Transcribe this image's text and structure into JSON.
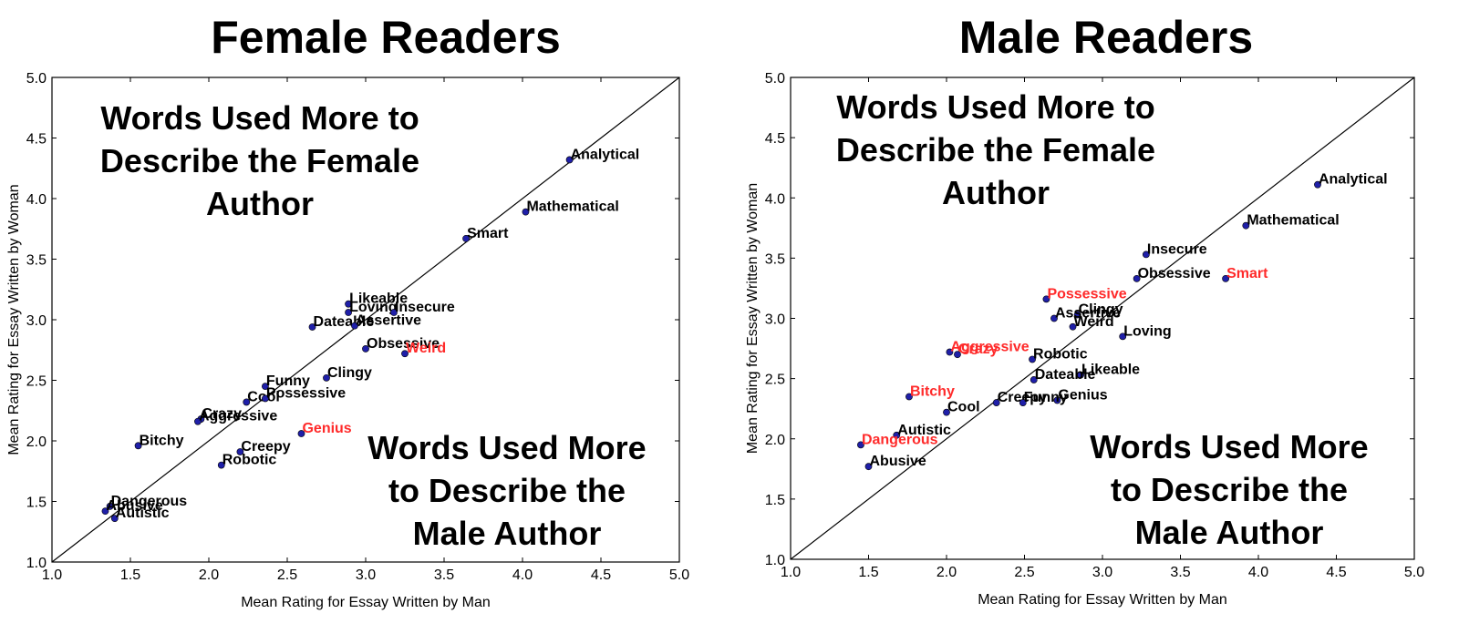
{
  "chart_data": [
    {
      "type": "scatter",
      "title": "Female Readers",
      "xlabel": "Mean Rating for Essay Written by Man",
      "ylabel": "Mean Rating for Essay Written by Woman",
      "xlim": [
        1.0,
        5.0
      ],
      "ylim": [
        1.0,
        5.0
      ],
      "xticks": [
        "1.0",
        "1.5",
        "2.0",
        "2.5",
        "3.0",
        "3.5",
        "4.0",
        "4.5",
        "5.0"
      ],
      "yticks": [
        "1.0",
        "1.5",
        "2.0",
        "2.5",
        "3.0",
        "3.5",
        "4.0",
        "4.5",
        "5.0"
      ],
      "reference_line": "y = x",
      "point_color": "#1f1fa8",
      "label_colors": {
        "normal": "#000000",
        "highlight": "#ff2a2a"
      },
      "annotations": [
        {
          "lines": [
            "Words Used More to",
            "Describe the Female",
            "Author"
          ]
        },
        {
          "lines": [
            "Words Used More",
            "to Describe the",
            "Male Author"
          ]
        }
      ],
      "points": [
        {
          "label": "Analytical",
          "x": 4.3,
          "y": 4.32,
          "highlight": false
        },
        {
          "label": "Mathematical",
          "x": 4.02,
          "y": 3.89,
          "highlight": false
        },
        {
          "label": "Smart",
          "x": 3.64,
          "y": 3.67,
          "highlight": false
        },
        {
          "label": "Likeable",
          "x": 2.89,
          "y": 3.13,
          "highlight": false
        },
        {
          "label": "Loving",
          "x": 2.89,
          "y": 3.06,
          "highlight": false
        },
        {
          "label": "Insecure",
          "x": 3.18,
          "y": 3.06,
          "highlight": false
        },
        {
          "label": "Dateable",
          "x": 2.66,
          "y": 2.94,
          "highlight": false
        },
        {
          "label": "Assertive",
          "x": 2.93,
          "y": 2.95,
          "highlight": false
        },
        {
          "label": "Obsessive",
          "x": 3.0,
          "y": 2.76,
          "highlight": false
        },
        {
          "label": "Weird",
          "x": 3.25,
          "y": 2.72,
          "highlight": true
        },
        {
          "label": "Clingy",
          "x": 2.75,
          "y": 2.52,
          "highlight": false
        },
        {
          "label": "Funny",
          "x": 2.36,
          "y": 2.45,
          "highlight": false
        },
        {
          "label": "Cool",
          "x": 2.24,
          "y": 2.32,
          "highlight": false
        },
        {
          "label": "Possessive",
          "x": 2.36,
          "y": 2.35,
          "highlight": false
        },
        {
          "label": "Crazy",
          "x": 1.95,
          "y": 2.18,
          "highlight": false
        },
        {
          "label": "Aggressive",
          "x": 1.93,
          "y": 2.16,
          "highlight": false
        },
        {
          "label": "Genius",
          "x": 2.59,
          "y": 2.06,
          "highlight": true
        },
        {
          "label": "Bitchy",
          "x": 1.55,
          "y": 1.96,
          "highlight": false
        },
        {
          "label": "Creepy",
          "x": 2.2,
          "y": 1.91,
          "highlight": false
        },
        {
          "label": "Robotic",
          "x": 2.08,
          "y": 1.8,
          "highlight": false
        },
        {
          "label": "Dangerous",
          "x": 1.37,
          "y": 1.46,
          "highlight": false
        },
        {
          "label": "Abusive",
          "x": 1.34,
          "y": 1.42,
          "highlight": false
        },
        {
          "label": "Autistic",
          "x": 1.4,
          "y": 1.36,
          "highlight": false
        }
      ]
    },
    {
      "type": "scatter",
      "title": "Male Readers",
      "xlabel": "Mean Rating for Essay Written by Man",
      "ylabel": "Mean Rating for Essay Written by Woman",
      "xlim": [
        1.0,
        5.0
      ],
      "ylim": [
        1.0,
        5.0
      ],
      "xticks": [
        "1.0",
        "1.5",
        "2.0",
        "2.5",
        "3.0",
        "3.5",
        "4.0",
        "4.5",
        "5.0"
      ],
      "yticks": [
        "1.0",
        "1.5",
        "2.0",
        "2.5",
        "3.0",
        "3.5",
        "4.0",
        "4.5",
        "5.0"
      ],
      "reference_line": "y = x",
      "point_color": "#1f1fa8",
      "label_colors": {
        "normal": "#000000",
        "highlight": "#ff2a2a"
      },
      "annotations": [
        {
          "lines": [
            "Words Used More to",
            "Describe the Female",
            "Author"
          ]
        },
        {
          "lines": [
            "Words Used More",
            "to Describe the",
            "Male Author"
          ]
        }
      ],
      "points": [
        {
          "label": "Analytical",
          "x": 4.38,
          "y": 4.11,
          "highlight": false
        },
        {
          "label": "Mathematical",
          "x": 3.92,
          "y": 3.77,
          "highlight": false
        },
        {
          "label": "Insecure",
          "x": 3.28,
          "y": 3.53,
          "highlight": false
        },
        {
          "label": "Obsessive",
          "x": 3.22,
          "y": 3.33,
          "highlight": false
        },
        {
          "label": "Smart",
          "x": 3.79,
          "y": 3.33,
          "highlight": true
        },
        {
          "label": "Possessive",
          "x": 2.64,
          "y": 3.16,
          "highlight": true
        },
        {
          "label": "Clingy",
          "x": 2.84,
          "y": 3.03,
          "highlight": false
        },
        {
          "label": "Assertive",
          "x": 2.69,
          "y": 3.0,
          "highlight": false
        },
        {
          "label": "Weird",
          "x": 2.81,
          "y": 2.93,
          "highlight": false
        },
        {
          "label": "Loving",
          "x": 3.13,
          "y": 2.85,
          "highlight": false
        },
        {
          "label": "Aggressive",
          "x": 2.02,
          "y": 2.72,
          "highlight": true
        },
        {
          "label": "Crazy",
          "x": 2.07,
          "y": 2.7,
          "highlight": true
        },
        {
          "label": "Robotic",
          "x": 2.55,
          "y": 2.66,
          "highlight": false
        },
        {
          "label": "Likeable",
          "x": 2.86,
          "y": 2.53,
          "highlight": false
        },
        {
          "label": "Dateable",
          "x": 2.56,
          "y": 2.49,
          "highlight": false
        },
        {
          "label": "Bitchy",
          "x": 1.76,
          "y": 2.35,
          "highlight": true
        },
        {
          "label": "Genius",
          "x": 2.71,
          "y": 2.32,
          "highlight": false
        },
        {
          "label": "Creepy",
          "x": 2.32,
          "y": 2.3,
          "highlight": false
        },
        {
          "label": "Funny",
          "x": 2.49,
          "y": 2.3,
          "highlight": false
        },
        {
          "label": "Cool",
          "x": 2.0,
          "y": 2.22,
          "highlight": false
        },
        {
          "label": "Autistic",
          "x": 1.68,
          "y": 2.03,
          "highlight": false
        },
        {
          "label": "Dangerous",
          "x": 1.45,
          "y": 1.95,
          "highlight": true
        },
        {
          "label": "Abusive",
          "x": 1.5,
          "y": 1.77,
          "highlight": false
        }
      ]
    }
  ]
}
